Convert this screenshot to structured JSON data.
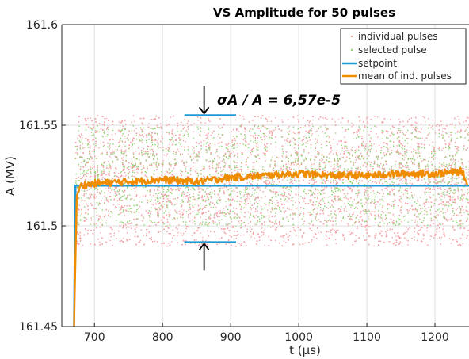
{
  "chart_data": {
    "type": "scatter",
    "title": "VS Amplitude for 50 pulses",
    "xlabel": "t (μs)",
    "ylabel": "A (MV)",
    "xlim": [
      652,
      1250
    ],
    "ylim": [
      161.45,
      161.6
    ],
    "x_ticks": [
      700,
      800,
      900,
      1000,
      1100,
      1200
    ],
    "y_ticks": [
      {
        "value": 161.45,
        "label": "161.45"
      },
      {
        "value": 161.5,
        "label": "161.5"
      },
      {
        "value": 161.55,
        "label": "161.55"
      },
      {
        "value": 161.6,
        "label": "161.6"
      }
    ],
    "grid": true,
    "legend_position": "top-right",
    "series": [
      {
        "name": "individual pulses",
        "kind": "scatter",
        "color": "#f4a3a8",
        "x_range": [
          670,
          1250
        ],
        "band": [
          161.49,
          161.555
        ]
      },
      {
        "name": "selected pulse",
        "kind": "scatter",
        "color": "#8fd36e",
        "x_range": [
          670,
          1250
        ],
        "band": [
          161.5,
          161.55
        ]
      },
      {
        "name": "setpoint",
        "kind": "line",
        "color": "#1f9ad6",
        "x": [
          670,
          672,
          1250
        ],
        "y": [
          161.45,
          161.52,
          161.52
        ]
      },
      {
        "name": "mean of ind. pulses",
        "kind": "line",
        "color": "#f08c00",
        "x": [
          670,
          674,
          680,
          700,
          750,
          800,
          850,
          900,
          950,
          1000,
          1050,
          1100,
          1150,
          1200,
          1240,
          1248
        ],
        "y": [
          161.45,
          161.515,
          161.52,
          161.521,
          161.522,
          161.523,
          161.522,
          161.524,
          161.525,
          161.526,
          161.525,
          161.525,
          161.526,
          161.526,
          161.527,
          161.52
        ]
      }
    ],
    "annotations": [
      {
        "text": "σA / A = 6,57e-5"
      }
    ],
    "sigma_markers": {
      "x_range": [
        832,
        908
      ],
      "upper_y": 161.555,
      "lower_y": 161.492,
      "arrow_x": 861
    },
    "colors": {
      "axis": "#262626",
      "grid": "#dfdfdf"
    }
  }
}
